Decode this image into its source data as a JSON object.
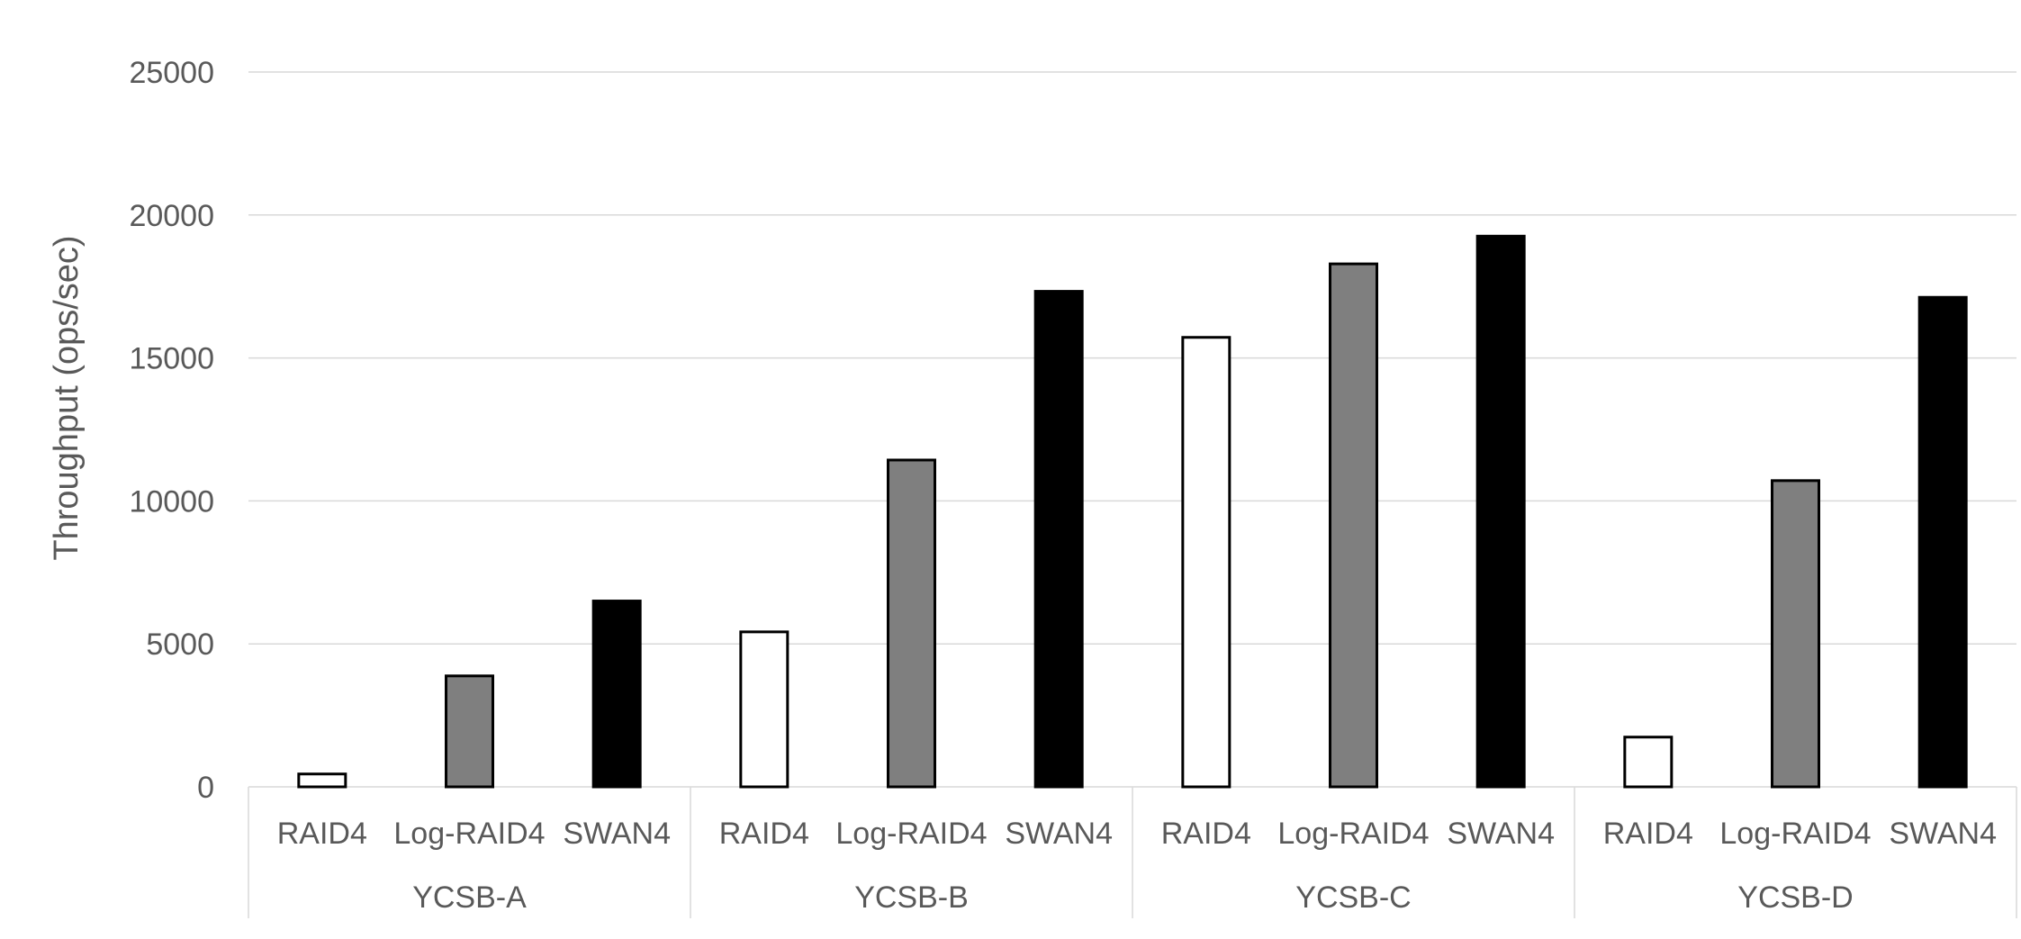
{
  "chart_data": {
    "type": "bar",
    "title": "",
    "xlabel": "",
    "ylabel": "Throughput (ops/sec)",
    "ylim": [
      0,
      25000
    ],
    "yticks": [
      0,
      5000,
      10000,
      15000,
      20000,
      25000
    ],
    "grid": true,
    "groups": [
      "YCSB-A",
      "YCSB-B",
      "YCSB-C",
      "YCSB-D"
    ],
    "bar_labels": [
      "RAID4",
      "Log-RAID4",
      "SWAN4"
    ],
    "bar_colors": [
      "#ffffff",
      "#7f7f7f",
      "#000000"
    ],
    "values": [
      [
        450,
        3880,
        6500
      ],
      [
        5420,
        11430,
        17330
      ],
      [
        15720,
        18290,
        19260
      ],
      [
        1740,
        10710,
        17120
      ]
    ]
  }
}
